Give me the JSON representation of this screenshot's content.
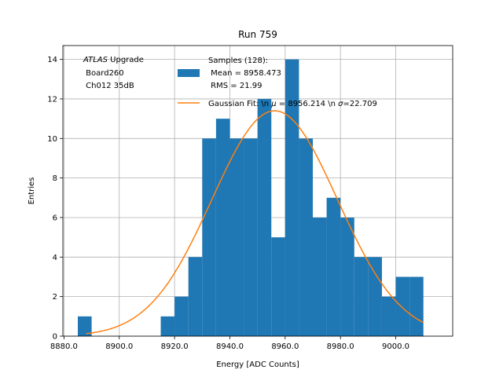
{
  "chart_data": {
    "type": "bar",
    "title": "Run 759",
    "xlabel": "Energy [ADC Counts]",
    "ylabel": "Entries",
    "xlim": [
      8879.6,
      9020.6
    ],
    "ylim": [
      0,
      14.7
    ],
    "grid": true,
    "x_ticks": [
      8880,
      8900,
      8920,
      8940,
      8960,
      8980,
      9000
    ],
    "x_tick_labels": [
      "8880.0",
      "8900.0",
      "8920.0",
      "8940.0",
      "8960.0",
      "8980.0",
      "9000.0"
    ],
    "y_ticks": [
      0,
      2,
      4,
      6,
      8,
      10,
      12,
      14
    ],
    "y_tick_labels": [
      "0",
      "2",
      "4",
      "6",
      "8",
      "10",
      "12",
      "14"
    ],
    "bin_width": 5,
    "bin_edges_start": 8885,
    "bin_counts": [
      1,
      0,
      0,
      0,
      0,
      0,
      1,
      2,
      4,
      10,
      11,
      10,
      10,
      12,
      5,
      14,
      10,
      6,
      7,
      6,
      4,
      4,
      2,
      3,
      3
    ],
    "bar_color": "#1f77b4",
    "fit": {
      "type": "gaussian",
      "mu": 8956.214,
      "sigma": 22.709,
      "amplitude": 11.4,
      "x_range": [
        8888,
        9010
      ],
      "color": "#ff7f0e"
    },
    "annotation": {
      "line1_italic": "ATLAS",
      "line1_rest": " Upgrade",
      "line2": " Board260",
      "line3": " Ch012 35dB"
    },
    "legend": {
      "position": "top-right",
      "samples_line1": "Samples (128):",
      "samples_line2": " Mean = 8958.473",
      "samples_line3": " RMS = 21.99",
      "fit_prefix": "Gaussian Fit: \\n ",
      "fit_mu_symbol": "μ",
      "fit_mid": " = 8956.214 \\n ",
      "fit_sigma_symbol": "σ",
      "fit_suffix": "=22.709"
    }
  }
}
